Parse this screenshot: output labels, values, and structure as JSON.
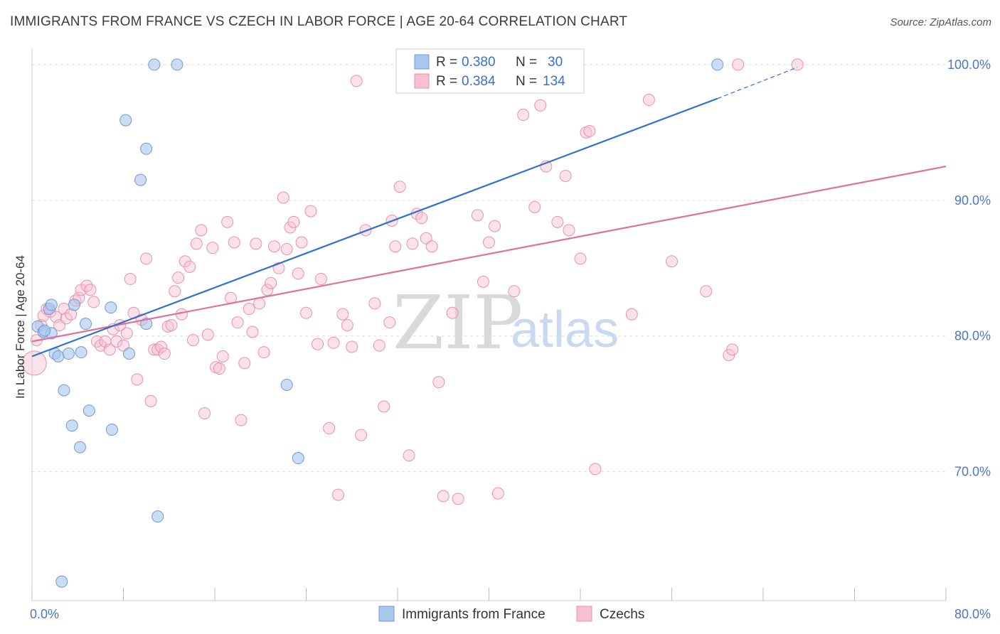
{
  "title": "IMMIGRANTS FROM FRANCE VS CZECH IN LABOR FORCE | AGE 20-64 CORRELATION CHART",
  "source": "Source: ZipAtlas.com",
  "watermark": {
    "zip": "ZIP",
    "atlas": "atlas"
  },
  "colors": {
    "france_fill": "#a9c6ef",
    "france_stroke": "#6f9ad8",
    "france_line": "#2f6fd0",
    "czech_fill": "#f7bfd0",
    "czech_stroke": "#e891ad",
    "czech_line": "#e07099",
    "grid": "#dddddd",
    "tick_text": "#4a78c8"
  },
  "legend": {
    "row1": {
      "r_label": "R = ",
      "r_value": "0.380",
      "n_label": "N = ",
      "n_value": "30"
    },
    "row2": {
      "r_label": "R = ",
      "r_value": "0.384",
      "n_label": "N = ",
      "n_value": "134"
    }
  },
  "bottom_legend": [
    {
      "name": "Immigrants from France"
    },
    {
      "name": "Czechs"
    }
  ],
  "chart_data": {
    "type": "scatter",
    "title": "IMMIGRANTS FROM FRANCE VS CZECH IN LABOR FORCE | AGE 20-64 CORRELATION CHART",
    "xlabel": "",
    "ylabel": "In Labor Force | Age 20-64",
    "xlim": [
      0,
      80
    ],
    "ylim": [
      60.5,
      101.2
    ],
    "x_tick_labels": [
      "0.0%",
      "80.0%"
    ],
    "y_ticks": [
      70,
      80,
      90,
      100
    ],
    "y_tick_labels": [
      "70.0%",
      "80.0%",
      "90.0%",
      "100.0%"
    ],
    "series": [
      {
        "name": "Immigrants from France",
        "r": 0.38,
        "n": 30,
        "trend": {
          "x0": 0,
          "y0": 78.5,
          "x1": 60,
          "y1": 97.5,
          "dash_to_x": 67,
          "dash_to_y": 99.8
        },
        "points": [
          [
            0.5,
            80.7
          ],
          [
            1.0,
            80.3
          ],
          [
            1.7,
            80.2
          ],
          [
            1.5,
            82.0
          ],
          [
            1.7,
            82.3
          ],
          [
            2.0,
            78.7
          ],
          [
            2.3,
            78.5
          ],
          [
            2.8,
            76.0
          ],
          [
            3.2,
            78.7
          ],
          [
            3.5,
            73.4
          ],
          [
            3.7,
            82.3
          ],
          [
            4.3,
            78.8
          ],
          [
            4.7,
            80.9
          ],
          [
            5.0,
            74.5
          ],
          [
            4.2,
            71.8
          ],
          [
            6.9,
            82.1
          ],
          [
            7.0,
            73.1
          ],
          [
            8.2,
            95.9
          ],
          [
            8.5,
            78.7
          ],
          [
            9.5,
            91.5
          ],
          [
            10.0,
            80.9
          ],
          [
            10.0,
            93.8
          ],
          [
            10.7,
            100.0
          ],
          [
            11.0,
            66.7
          ],
          [
            12.7,
            100.0
          ],
          [
            22.3,
            76.4
          ],
          [
            23.3,
            71.0
          ],
          [
            60.0,
            100.0
          ],
          [
            2.6,
            61.9
          ],
          [
            1.1,
            80.4
          ]
        ]
      },
      {
        "name": "Czechs",
        "r": 0.384,
        "n": 134,
        "trend": {
          "x0": 0,
          "y0": 79.6,
          "x1": 80,
          "y1": 92.5
        },
        "points": [
          [
            0.2,
            78.0
          ],
          [
            0.4,
            79.7
          ],
          [
            0.8,
            80.8
          ],
          [
            1.0,
            81.5
          ],
          [
            1.3,
            82.0
          ],
          [
            1.6,
            81.8
          ],
          [
            2.1,
            81.4
          ],
          [
            2.4,
            80.8
          ],
          [
            2.8,
            82.0
          ],
          [
            3.0,
            81.3
          ],
          [
            3.4,
            81.6
          ],
          [
            3.8,
            82.6
          ],
          [
            4.1,
            82.8
          ],
          [
            4.3,
            83.4
          ],
          [
            4.8,
            83.7
          ],
          [
            5.1,
            83.4
          ],
          [
            5.4,
            82.5
          ],
          [
            5.7,
            79.6
          ],
          [
            6.0,
            79.3
          ],
          [
            6.4,
            79.6
          ],
          [
            6.8,
            79.0
          ],
          [
            7.1,
            80.5
          ],
          [
            7.4,
            79.6
          ],
          [
            7.7,
            80.8
          ],
          [
            8.0,
            79.3
          ],
          [
            8.3,
            80.2
          ],
          [
            8.6,
            84.2
          ],
          [
            8.9,
            81.7
          ],
          [
            9.2,
            76.8
          ],
          [
            9.6,
            81.2
          ],
          [
            10.0,
            85.7
          ],
          [
            10.4,
            75.2
          ],
          [
            10.7,
            79.0
          ],
          [
            11.0,
            79.0
          ],
          [
            11.3,
            79.2
          ],
          [
            11.6,
            78.7
          ],
          [
            11.9,
            80.7
          ],
          [
            12.2,
            80.8
          ],
          [
            12.5,
            83.3
          ],
          [
            12.8,
            84.3
          ],
          [
            13.1,
            81.6
          ],
          [
            13.4,
            85.5
          ],
          [
            13.8,
            85.1
          ],
          [
            14.1,
            79.7
          ],
          [
            14.4,
            86.8
          ],
          [
            14.8,
            87.8
          ],
          [
            15.1,
            74.3
          ],
          [
            15.4,
            80.1
          ],
          [
            15.8,
            86.5
          ],
          [
            16.1,
            77.7
          ],
          [
            16.4,
            77.6
          ],
          [
            16.7,
            78.5
          ],
          [
            17.1,
            88.4
          ],
          [
            17.4,
            82.8
          ],
          [
            17.7,
            86.9
          ],
          [
            18.0,
            81.0
          ],
          [
            18.3,
            73.8
          ],
          [
            18.6,
            78.0
          ],
          [
            19.0,
            82.0
          ],
          [
            19.3,
            80.3
          ],
          [
            19.6,
            86.8
          ],
          [
            19.9,
            82.4
          ],
          [
            20.3,
            78.8
          ],
          [
            20.6,
            83.4
          ],
          [
            20.9,
            83.9
          ],
          [
            21.2,
            86.6
          ],
          [
            21.6,
            85.0
          ],
          [
            22.0,
            90.2
          ],
          [
            22.3,
            86.4
          ],
          [
            22.6,
            88.0
          ],
          [
            22.9,
            88.4
          ],
          [
            23.3,
            84.6
          ],
          [
            23.6,
            86.9
          ],
          [
            24.0,
            81.7
          ],
          [
            24.4,
            89.2
          ],
          [
            25.0,
            79.4
          ],
          [
            25.3,
            84.2
          ],
          [
            26.0,
            73.2
          ],
          [
            26.4,
            79.5
          ],
          [
            26.8,
            68.3
          ],
          [
            27.2,
            81.6
          ],
          [
            27.6,
            80.8
          ],
          [
            28.0,
            79.2
          ],
          [
            28.4,
            98.8
          ],
          [
            28.8,
            72.7
          ],
          [
            29.2,
            87.8
          ],
          [
            30.0,
            82.4
          ],
          [
            30.4,
            79.3
          ],
          [
            30.8,
            74.8
          ],
          [
            31.3,
            81.0
          ],
          [
            31.5,
            88.5
          ],
          [
            31.8,
            86.6
          ],
          [
            32.2,
            91.0
          ],
          [
            33.0,
            71.2
          ],
          [
            33.3,
            86.8
          ],
          [
            33.7,
            89.0
          ],
          [
            34.1,
            88.7
          ],
          [
            34.5,
            87.2
          ],
          [
            35.0,
            86.6
          ],
          [
            35.6,
            76.6
          ],
          [
            36.0,
            68.2
          ],
          [
            36.8,
            81.7
          ],
          [
            37.3,
            68.0
          ],
          [
            39.0,
            88.9
          ],
          [
            39.5,
            84.0
          ],
          [
            40.0,
            86.9
          ],
          [
            40.5,
            88.1
          ],
          [
            40.8,
            68.4
          ],
          [
            41.6,
            100.0
          ],
          [
            42.2,
            83.3
          ],
          [
            43.0,
            96.3
          ],
          [
            44.0,
            89.5
          ],
          [
            44.5,
            97.0
          ],
          [
            45.0,
            92.5
          ],
          [
            46.0,
            88.4
          ],
          [
            47.0,
            87.8
          ],
          [
            46.7,
            91.8
          ],
          [
            48.0,
            85.7
          ],
          [
            48.5,
            95.0
          ],
          [
            48.8,
            95.1
          ],
          [
            49.3,
            70.2
          ],
          [
            52.5,
            81.6
          ],
          [
            54.0,
            97.4
          ],
          [
            56.0,
            85.5
          ],
          [
            59.0,
            83.3
          ],
          [
            61.0,
            78.6
          ],
          [
            61.3,
            79.0
          ],
          [
            61.8,
            100.0
          ],
          [
            67.0,
            100.0
          ]
        ]
      }
    ]
  }
}
